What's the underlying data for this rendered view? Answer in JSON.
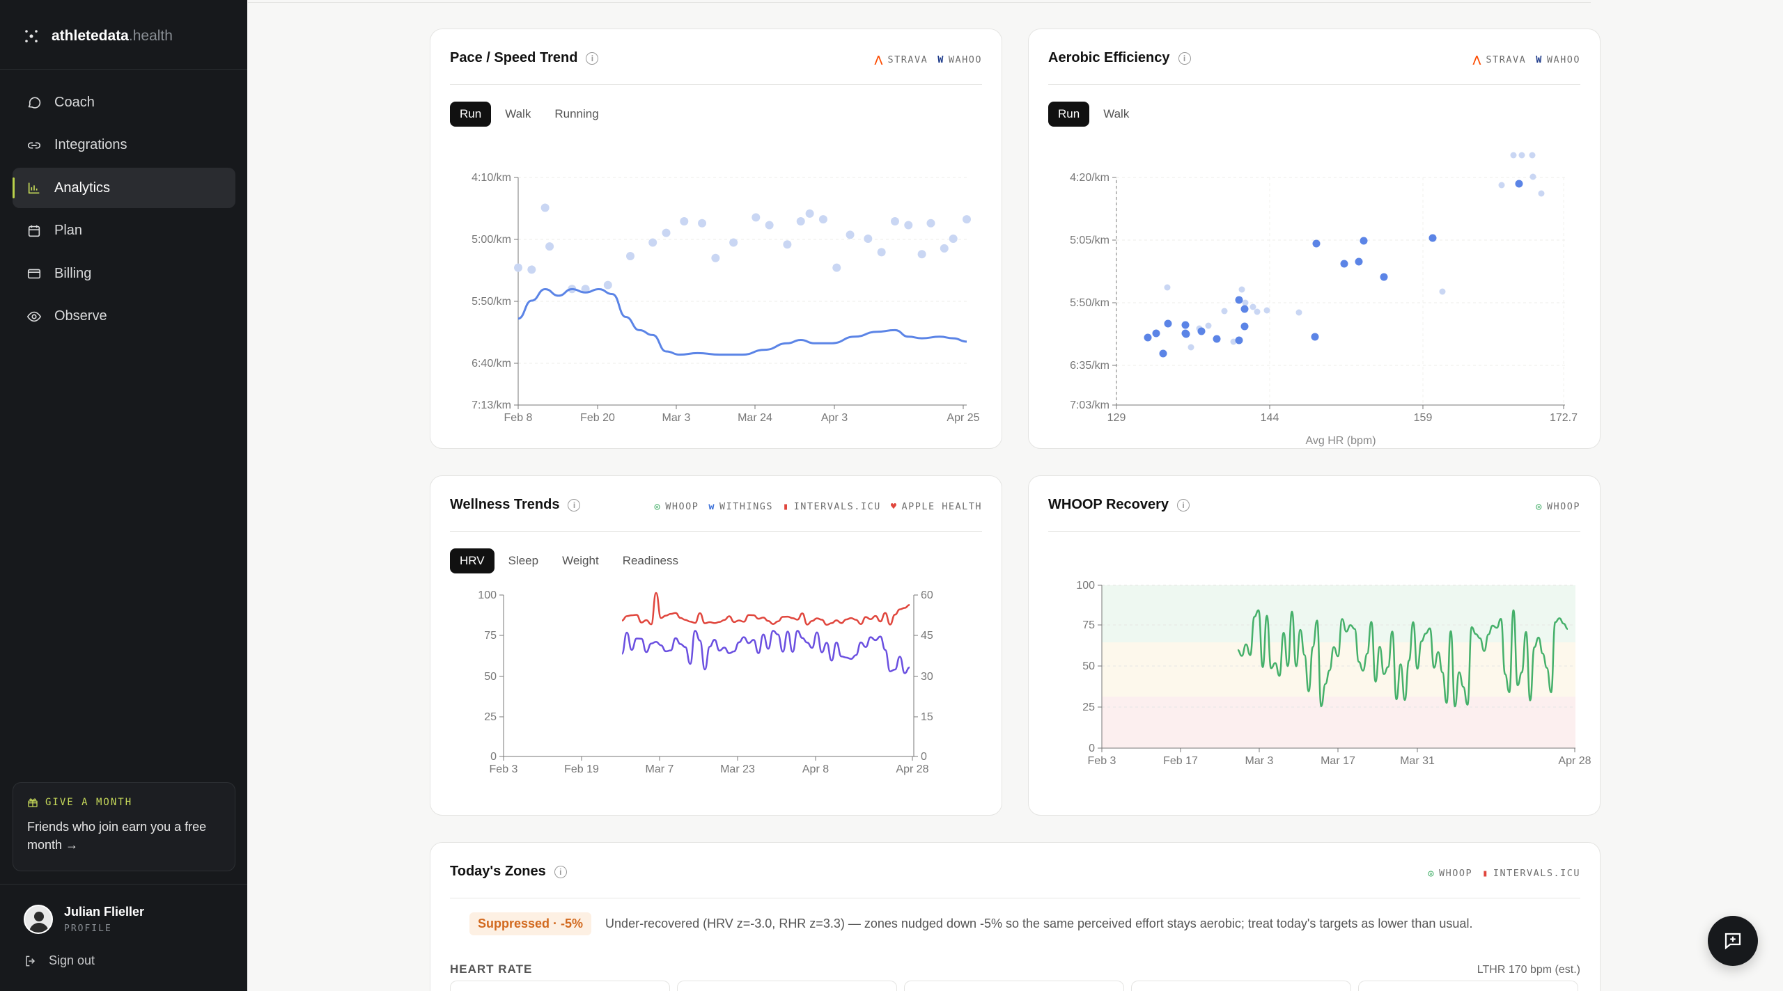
{
  "brand": {
    "name": "athletedata",
    "suffix": ".health"
  },
  "nav": [
    {
      "label": "Coach",
      "icon": "chat-bubble-icon"
    },
    {
      "label": "Integrations",
      "icon": "link-icon"
    },
    {
      "label": "Analytics",
      "icon": "bar-chart-icon",
      "active": true
    },
    {
      "label": "Plan",
      "icon": "calendar-icon"
    },
    {
      "label": "Billing",
      "icon": "credit-card-icon"
    },
    {
      "label": "Observe",
      "icon": "eye-icon"
    }
  ],
  "promo": {
    "tag": "GIVE A MONTH",
    "text": "Friends who join earn you a free month →"
  },
  "user": {
    "name": "Julian Flieller",
    "role": "PROFILE",
    "signout": "Sign out"
  },
  "pace": {
    "title": "Pace / Speed Trend",
    "sources": [
      "STRAVA",
      "WAHOO"
    ],
    "tabs": [
      "Run",
      "Walk",
      "Running"
    ],
    "chart_data": {
      "type": "line",
      "yticks": [
        "4:10/km",
        "5:00/km",
        "5:50/km",
        "6:40/km",
        "7:13/km"
      ],
      "xticks": [
        "Feb 8",
        "Feb 20",
        "Mar 3",
        "Mar 24",
        "Apr 3",
        "Apr 25"
      ],
      "series": [
        {
          "values": [
            [
              0,
              0.78
            ],
            [
              3,
              0.67
            ],
            [
              6,
              0.6
            ],
            [
              9,
              0.64
            ],
            [
              12,
              0.6
            ],
            [
              15,
              0.62
            ],
            [
              18,
              0.6
            ],
            [
              21,
              0.63
            ],
            [
              24,
              0.77
            ],
            [
              27,
              0.85
            ],
            [
              30,
              0.88
            ],
            [
              33,
              0.98
            ],
            [
              36,
              1.0
            ],
            [
              40,
              0.99
            ],
            [
              45,
              1.0
            ],
            [
              50,
              1.0
            ],
            [
              55,
              0.97
            ],
            [
              60,
              0.93
            ],
            [
              63,
              0.91
            ],
            [
              66,
              0.93
            ],
            [
              70,
              0.93
            ],
            [
              75,
              0.89
            ],
            [
              80,
              0.86
            ],
            [
              84,
              0.85
            ],
            [
              87,
              0.89
            ],
            [
              90,
              0.9
            ],
            [
              94,
              0.89
            ],
            [
              97,
              0.9
            ],
            [
              100,
              0.92
            ]
          ]
        },
        {
          "points": [
            [
              0,
              0.71
            ],
            [
              3,
              0.7
            ],
            [
              7,
              0.82
            ],
            [
              12,
              0.6
            ],
            [
              15,
              0.6
            ],
            [
              20,
              0.62
            ],
            [
              25,
              0.77
            ],
            [
              30,
              0.84
            ],
            [
              33,
              0.89
            ],
            [
              37,
              0.95
            ],
            [
              41,
              0.94
            ],
            [
              44,
              0.76
            ],
            [
              48,
              0.84
            ],
            [
              53,
              0.97
            ],
            [
              56,
              0.93
            ],
            [
              60,
              0.83
            ],
            [
              63,
              0.95
            ],
            [
              65,
              0.99
            ],
            [
              68,
              0.96
            ],
            [
              71,
              0.71
            ],
            [
              74,
              0.88
            ],
            [
              78,
              0.86
            ],
            [
              81,
              0.79
            ],
            [
              84,
              0.95
            ],
            [
              87,
              0.93
            ],
            [
              90,
              0.78
            ],
            [
              92,
              0.94
            ],
            [
              95,
              0.81
            ],
            [
              97,
              0.86
            ],
            [
              100,
              0.96
            ],
            [
              6,
              1.02
            ]
          ]
        }
      ]
    }
  },
  "aerobic": {
    "title": "Aerobic Efficiency",
    "sources": [
      "STRAVA",
      "WAHOO"
    ],
    "tabs": [
      "Run",
      "Walk"
    ],
    "chart_data": {
      "type": "scatter",
      "yticks": [
        "4:20/km",
        "5:05/km",
        "5:50/km",
        "6:35/km",
        "7:03/km"
      ],
      "xticks": [
        "129",
        "144",
        "159",
        "172.7"
      ],
      "xlabel": "Avg HR (bpm)"
    }
  },
  "wellness": {
    "title": "Wellness Trends",
    "sources": [
      "WHOOP",
      "WITHINGS",
      "INTERVALS.ICU",
      "APPLE HEALTH"
    ],
    "tabs": [
      "HRV",
      "Sleep",
      "Weight",
      "Readiness"
    ],
    "chart_data": {
      "type": "line",
      "yticks_left": [
        "100",
        "75",
        "50",
        "25",
        "0"
      ],
      "yticks_right": [
        "60",
        "45",
        "30",
        "15",
        "0"
      ],
      "xticks": [
        "Feb 3",
        "Feb 19",
        "Mar 7",
        "Mar 23",
        "Apr 8",
        "Apr 28"
      ]
    }
  },
  "whoop": {
    "title": "WHOOP Recovery",
    "sources": [
      "WHOOP"
    ],
    "chart_data": {
      "type": "line",
      "yticks": [
        "100",
        "75",
        "50",
        "25",
        "0"
      ],
      "xticks": [
        "Feb 3",
        "Feb 17",
        "Mar 3",
        "Mar 17",
        "Mar 31",
        "Apr 28"
      ]
    }
  },
  "zones": {
    "title": "Today's Zones",
    "sources": [
      "WHOOP",
      "INTERVALS.ICU"
    ],
    "badge": "Suppressed · -5%",
    "message": "Under-recovered (HRV z=-3.0, RHR z=3.3) — zones nudged down -5% so the same perceived effort stays aerobic; treat today's targets as lower than usual.",
    "section": "HEART RATE",
    "lthr": "LTHR 170 bpm (est.)"
  },
  "colors": {
    "accent": "#c8de5a",
    "pace_line": "#5b84e6",
    "pace_dots": "#c9d6f3",
    "hrv": "#6a4fe0",
    "rhr": "#e0463d",
    "recovery": "#45b06a"
  }
}
